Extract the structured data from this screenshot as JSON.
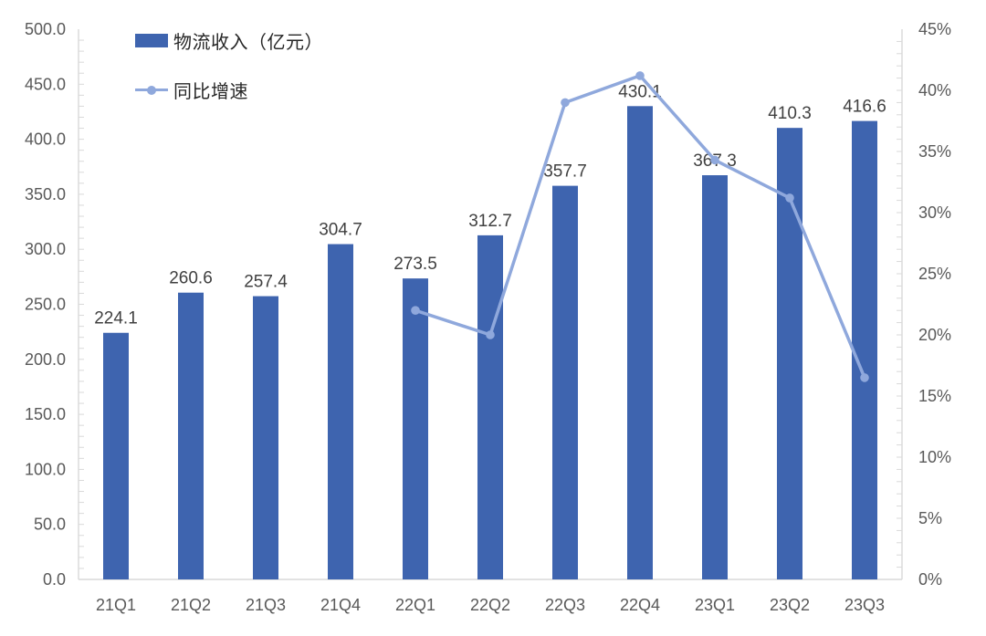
{
  "chart_data": {
    "type": "bar+line",
    "title": "",
    "categories": [
      "21Q1",
      "21Q2",
      "21Q3",
      "21Q4",
      "22Q1",
      "22Q2",
      "22Q3",
      "22Q4",
      "23Q1",
      "23Q2",
      "23Q3"
    ],
    "series": [
      {
        "name": "物流收入（亿元）",
        "type": "bar",
        "axis": "left",
        "values": [
          224.1,
          260.6,
          257.4,
          304.7,
          273.5,
          312.7,
          357.7,
          430.1,
          367.3,
          410.3,
          416.6
        ],
        "labels": [
          "224.1",
          "260.6",
          "257.4",
          "304.7",
          "273.5",
          "312.7",
          "357.7",
          "430.1",
          "367.3",
          "410.3",
          "416.6"
        ],
        "color": "#3E64AF"
      },
      {
        "name": "同比增速",
        "type": "line",
        "axis": "right",
        "values": [
          null,
          null,
          null,
          null,
          22.0,
          20.0,
          39.0,
          41.2,
          34.3,
          31.2,
          16.5
        ],
        "color": "#8FA8DC"
      }
    ],
    "left_axis": {
      "min": 0,
      "max": 500,
      "tick_step": 50,
      "minor_step": 10,
      "tick_labels": [
        "0.0",
        "50.0",
        "100.0",
        "150.0",
        "200.0",
        "250.0",
        "300.0",
        "350.0",
        "400.0",
        "450.0",
        "500.0"
      ]
    },
    "right_axis": {
      "min": 0,
      "max": 45,
      "tick_step": 5,
      "minor_step": 1,
      "tick_labels": [
        "0%",
        "5%",
        "10%",
        "15%",
        "20%",
        "25%",
        "30%",
        "35%",
        "40%",
        "45%"
      ]
    },
    "legend_position": "top-left",
    "grid": false,
    "colors": {
      "axis_line": "#D9D9D9",
      "tick": "#D9D9D9",
      "axis_text": "#595959",
      "data_label": "#404040",
      "legend_text": "#262626",
      "background": "#FFFFFF"
    }
  }
}
